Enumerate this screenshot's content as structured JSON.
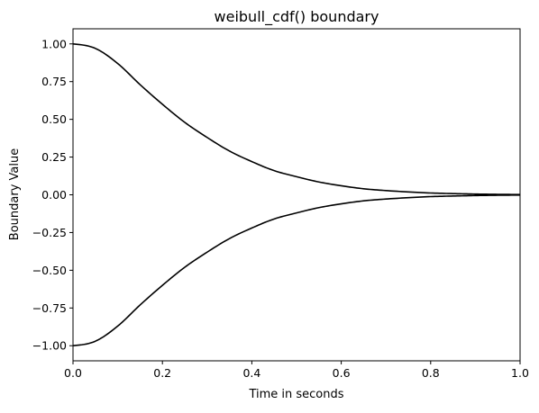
{
  "chart_data": {
    "type": "line",
    "title": "weibull_cdf() boundary",
    "xlabel": "Time in seconds",
    "ylabel": "Boundary Value",
    "xlim": [
      0,
      1
    ],
    "ylim": [
      -1.1,
      1.1
    ],
    "grid": false,
    "legend": "none",
    "x_ticks": [
      0.0,
      0.2,
      0.4,
      0.6,
      0.8,
      1.0
    ],
    "x_tick_labels": [
      "0.0",
      "0.2",
      "0.4",
      "0.6",
      "0.8",
      "1.0"
    ],
    "y_ticks": [
      -1.0,
      -0.75,
      -0.5,
      -0.25,
      0.0,
      0.25,
      0.5,
      0.75,
      1.0
    ],
    "y_tick_labels": [
      "−1.00",
      "−0.75",
      "−0.50",
      "−0.25",
      "0.00",
      "0.25",
      "0.50",
      "0.75",
      "1.00"
    ],
    "series": [
      {
        "color": "#000000",
        "x": [
          0.0,
          0.05,
          0.1,
          0.15,
          0.2,
          0.25,
          0.3,
          0.35,
          0.4,
          0.45,
          0.5,
          0.55,
          0.6,
          0.65,
          0.7,
          0.75,
          0.8,
          0.85,
          0.9,
          0.95,
          1.0
        ],
        "y": [
          1.0,
          0.97,
          0.87,
          0.73,
          0.6,
          0.48,
          0.38,
          0.29,
          0.22,
          0.16,
          0.12,
          0.085,
          0.06,
          0.04,
          0.028,
          0.019,
          0.012,
          0.008,
          0.005,
          0.003,
          0.002
        ]
      },
      {
        "color": "#000000",
        "x": [
          0.0,
          0.05,
          0.1,
          0.15,
          0.2,
          0.25,
          0.3,
          0.35,
          0.4,
          0.45,
          0.5,
          0.55,
          0.6,
          0.65,
          0.7,
          0.75,
          0.8,
          0.85,
          0.9,
          0.95,
          1.0
        ],
        "y": [
          -1.0,
          -0.97,
          -0.87,
          -0.73,
          -0.6,
          -0.48,
          -0.38,
          -0.29,
          -0.22,
          -0.16,
          -0.12,
          -0.085,
          -0.06,
          -0.04,
          -0.028,
          -0.019,
          -0.012,
          -0.008,
          -0.005,
          -0.003,
          -0.002
        ]
      }
    ]
  }
}
